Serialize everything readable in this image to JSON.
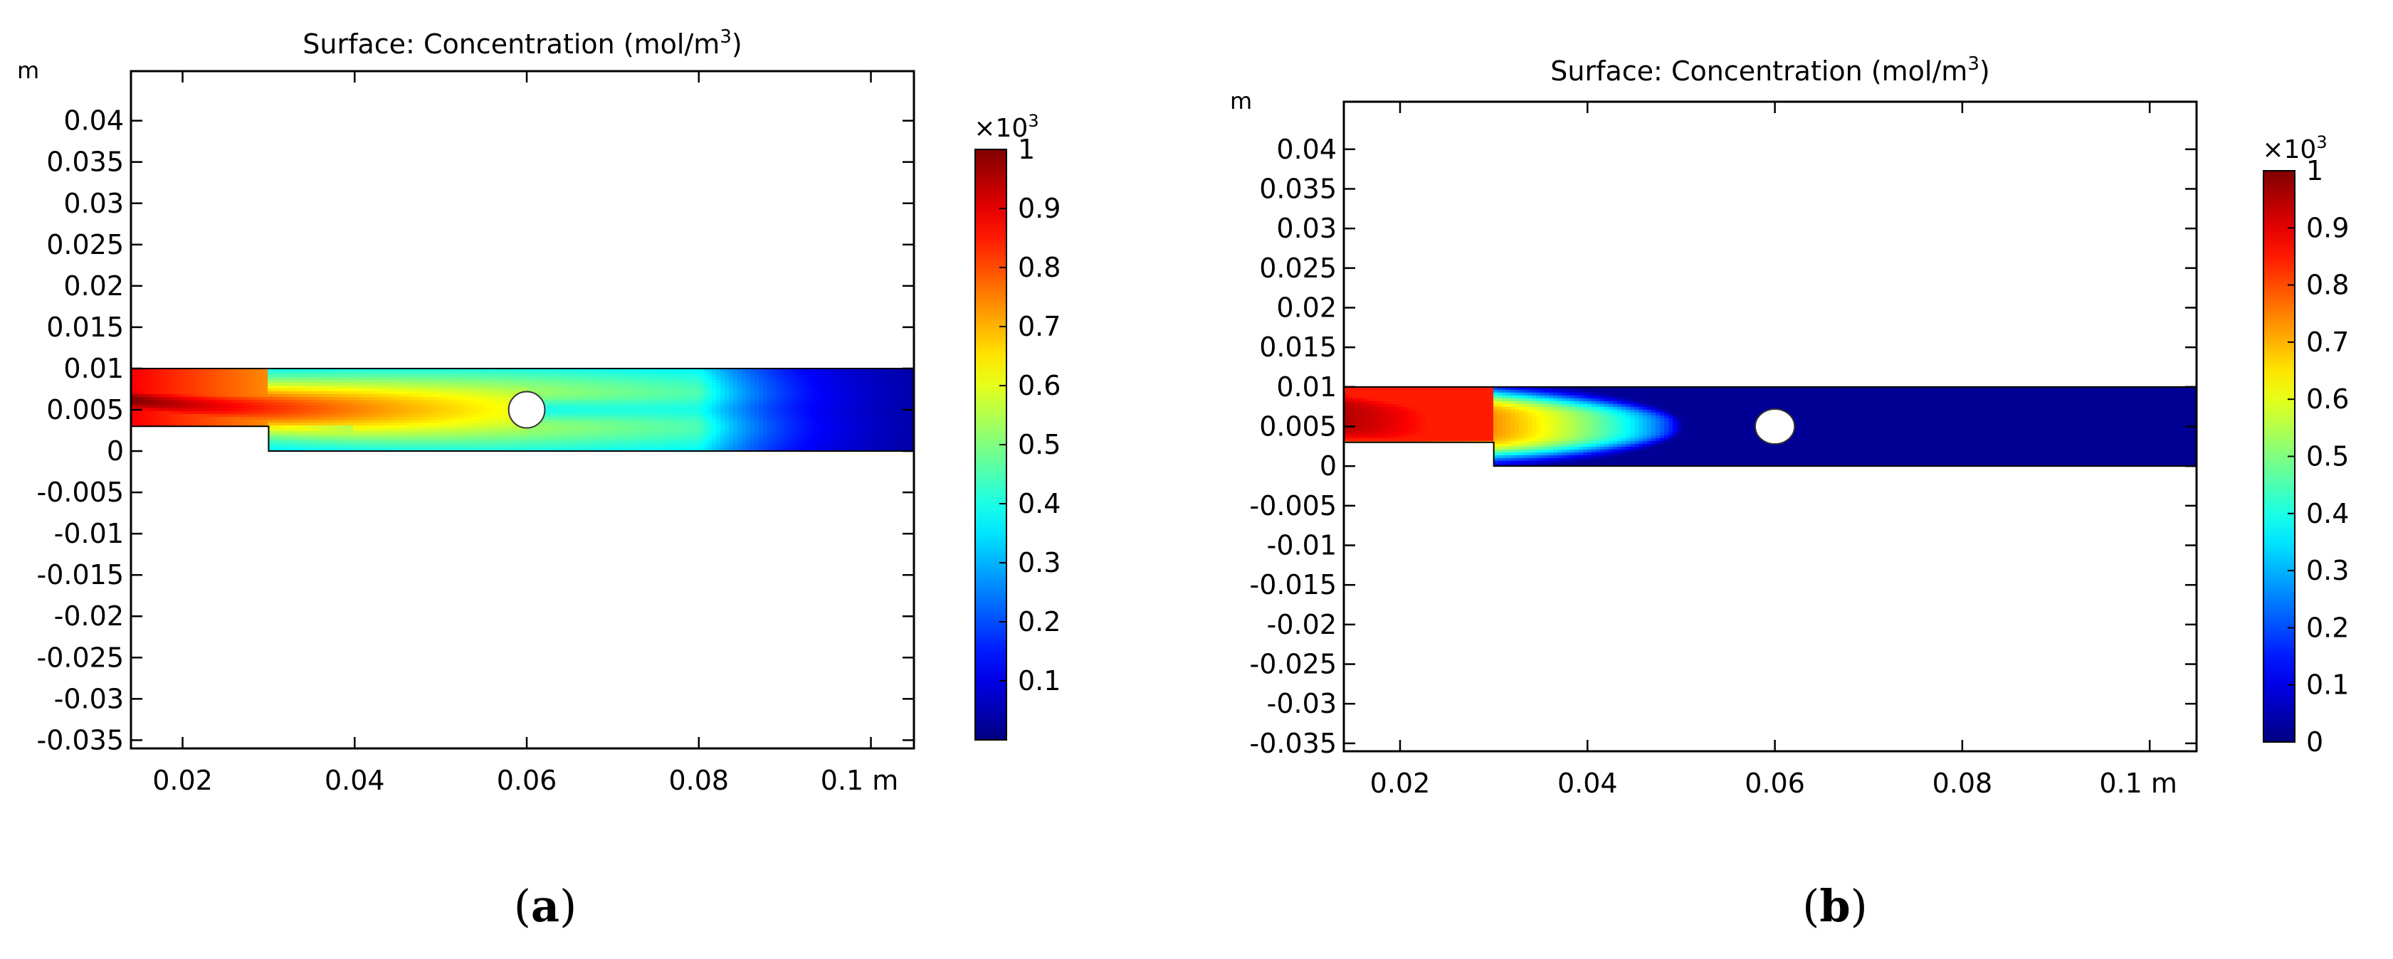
{
  "panels": [
    {
      "id": "a",
      "panel_label": "(a)",
      "title": "Surface: Concentration (mol/m",
      "title_sup": "3",
      "title_close": ")",
      "axis_unit": "m",
      "x_ticks": [
        {
          "v": 0.02,
          "label": "0.02"
        },
        {
          "v": 0.04,
          "label": "0.04"
        },
        {
          "v": 0.06,
          "label": "0.06"
        },
        {
          "v": 0.08,
          "label": "0.08"
        },
        {
          "v": 0.1,
          "label": "0.1 m"
        }
      ],
      "y_ticks": [
        {
          "v": 0.04,
          "label": "0.04"
        },
        {
          "v": 0.035,
          "label": "0.035"
        },
        {
          "v": 0.03,
          "label": "0.03"
        },
        {
          "v": 0.025,
          "label": "0.025"
        },
        {
          "v": 0.02,
          "label": "0.02"
        },
        {
          "v": 0.015,
          "label": "0.015"
        },
        {
          "v": 0.01,
          "label": "0.01"
        },
        {
          "v": 0.005,
          "label": "0.005"
        },
        {
          "v": 0,
          "label": "0"
        },
        {
          "v": -0.005,
          "label": "-0.005"
        },
        {
          "v": -0.01,
          "label": "-0.01"
        },
        {
          "v": -0.015,
          "label": "-0.015"
        },
        {
          "v": -0.02,
          "label": "-0.02"
        },
        {
          "v": -0.025,
          "label": "-0.025"
        },
        {
          "v": -0.03,
          "label": "-0.03"
        },
        {
          "v": -0.035,
          "label": "-0.035"
        }
      ],
      "colorbar": {
        "multiplier": "×10",
        "multiplier_exp": "3",
        "range": [
          0,
          1
        ],
        "ticks": [
          {
            "v": 1,
            "label": "1"
          },
          {
            "v": 0.9,
            "label": "0.9"
          },
          {
            "v": 0.8,
            "label": "0.8"
          },
          {
            "v": 0.7,
            "label": "0.7"
          },
          {
            "v": 0.6,
            "label": "0.6"
          },
          {
            "v": 0.5,
            "label": "0.5"
          },
          {
            "v": 0.4,
            "label": "0.4"
          },
          {
            "v": 0.3,
            "label": "0.3"
          },
          {
            "v": 0.2,
            "label": "0.2"
          },
          {
            "v": 0.1,
            "label": "0.1"
          }
        ]
      }
    },
    {
      "id": "b",
      "panel_label": "(b)",
      "title": "Surface: Concentration (mol/m",
      "title_sup": "3",
      "title_close": ")",
      "axis_unit": "m",
      "x_ticks": [
        {
          "v": 0.02,
          "label": "0.02"
        },
        {
          "v": 0.04,
          "label": "0.04"
        },
        {
          "v": 0.06,
          "label": "0.06"
        },
        {
          "v": 0.08,
          "label": "0.08"
        },
        {
          "v": 0.1,
          "label": "0.1 m"
        }
      ],
      "y_ticks": [
        {
          "v": 0.04,
          "label": "0.04"
        },
        {
          "v": 0.035,
          "label": "0.035"
        },
        {
          "v": 0.03,
          "label": "0.03"
        },
        {
          "v": 0.025,
          "label": "0.025"
        },
        {
          "v": 0.02,
          "label": "0.02"
        },
        {
          "v": 0.015,
          "label": "0.015"
        },
        {
          "v": 0.01,
          "label": "0.01"
        },
        {
          "v": 0.005,
          "label": "0.005"
        },
        {
          "v": 0,
          "label": "0"
        },
        {
          "v": -0.005,
          "label": "-0.005"
        },
        {
          "v": -0.01,
          "label": "-0.01"
        },
        {
          "v": -0.015,
          "label": "-0.015"
        },
        {
          "v": -0.02,
          "label": "-0.02"
        },
        {
          "v": -0.025,
          "label": "-0.025"
        },
        {
          "v": -0.03,
          "label": "-0.03"
        },
        {
          "v": -0.035,
          "label": "-0.035"
        }
      ],
      "colorbar": {
        "multiplier": "×10",
        "multiplier_exp": "3",
        "range": [
          0,
          1
        ],
        "ticks": [
          {
            "v": 1,
            "label": "1"
          },
          {
            "v": 0.9,
            "label": "0.9"
          },
          {
            "v": 0.8,
            "label": "0.8"
          },
          {
            "v": 0.7,
            "label": "0.7"
          },
          {
            "v": 0.6,
            "label": "0.6"
          },
          {
            "v": 0.5,
            "label": "0.5"
          },
          {
            "v": 0.4,
            "label": "0.4"
          },
          {
            "v": 0.3,
            "label": "0.3"
          },
          {
            "v": 0.2,
            "label": "0.2"
          },
          {
            "v": 0.1,
            "label": "0.1"
          },
          {
            "v": 0,
            "label": "0"
          }
        ]
      }
    }
  ],
  "chart_data": [
    {
      "type": "heatmap",
      "title": "Surface: Concentration (mol/m3)",
      "xlabel": "m",
      "ylabel": "m",
      "xlim": [
        0.014,
        0.105
      ],
      "ylim": [
        -0.036,
        0.046
      ],
      "channel": {
        "x_start": 0.014,
        "x_end": 0.105,
        "y_bottom": 0,
        "y_top": 0.01,
        "step_x": 0.03,
        "step_y": 0.003
      },
      "obstacle": {
        "cx": 0.06,
        "cy": 0.005,
        "r": 0.002
      },
      "colorbar": {
        "label_multiplier": "×10^3",
        "min": 0,
        "max": 1,
        "ticks": [
          1,
          0.9,
          0.8,
          0.7,
          0.6,
          0.5,
          0.4,
          0.3,
          0.2,
          0.1
        ]
      },
      "field": {
        "description_values": {
          "inlet": 1.0,
          "near_obstacle": 0.6,
          "outlet_far": 0.1
        }
      }
    },
    {
      "type": "heatmap",
      "title": "Surface: Concentration (mol/m3)",
      "xlabel": "m",
      "ylabel": "m",
      "xlim": [
        0.014,
        0.105
      ],
      "ylim": [
        -0.036,
        0.046
      ],
      "channel": {
        "x_start": 0.014,
        "x_end": 0.105,
        "y_bottom": 0,
        "y_top": 0.01,
        "step_x": 0.03,
        "step_y": 0.003
      },
      "obstacle": {
        "cx": 0.06,
        "cy": 0.005,
        "r": 0.002
      },
      "colorbar": {
        "label_multiplier": "×10^3",
        "min": 0,
        "max": 1,
        "ticks": [
          1,
          0.9,
          0.8,
          0.7,
          0.6,
          0.5,
          0.4,
          0.3,
          0.2,
          0.1,
          0
        ]
      },
      "field": {
        "description_values": {
          "inlet": 1.0,
          "near_obstacle": 0.0,
          "outlet_far": 0.0
        }
      }
    }
  ]
}
